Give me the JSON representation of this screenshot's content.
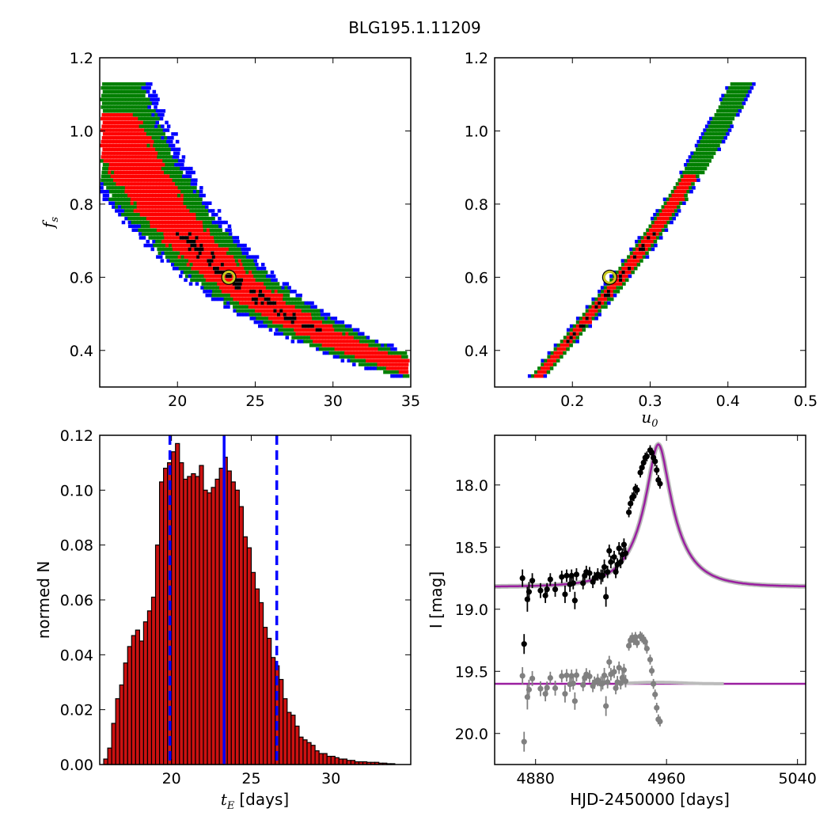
{
  "title": "BLG195.1.11209",
  "colors": {
    "sigma1": "#ff0000",
    "sigma2": "#008000",
    "sigma3": "#0000ff",
    "best": "#000000",
    "marker_ring": "#c8c820",
    "hist_fill": "#cc1111",
    "hist_line": "#0000ff",
    "model": "#9a1fa0",
    "data_points": "#000000",
    "residuals": "#808080"
  },
  "chart_data": [
    {
      "type": "heatmap",
      "name": "tE-fs",
      "xlabel": "",
      "ylabel_symbol": "f",
      "ylabel_sub": "s",
      "xlim": [
        15,
        35
      ],
      "ylim": [
        0.3,
        1.2
      ],
      "xticks": [
        "20",
        "25",
        "30",
        "35"
      ],
      "yticks": [
        "0.4",
        "0.6",
        "0.8",
        "1.0",
        "1.2"
      ],
      "best_fit": {
        "x": 23.3,
        "y": 0.6
      }
    },
    {
      "type": "heatmap",
      "name": "u0-fs",
      "xlabel_symbol": "u",
      "xlabel_sub": "0",
      "xlim": [
        0.1,
        0.5
      ],
      "ylim": [
        0.3,
        1.2
      ],
      "xticks": [
        "0.2",
        "0.3",
        "0.4",
        "0.5"
      ],
      "yticks": [
        "0.4",
        "0.6",
        "0.8",
        "1.0",
        "1.2"
      ],
      "best_fit": {
        "x": 0.248,
        "y": 0.6
      }
    },
    {
      "type": "bar",
      "name": "tE-histogram",
      "xlabel_symbol": "t",
      "xlabel_sub": "E",
      "xlabel_unit": "[days]",
      "ylabel": "normed N",
      "xlim": [
        15.5,
        35
      ],
      "ylim": [
        0,
        0.12
      ],
      "xticks": [
        "20",
        "25",
        "30"
      ],
      "yticks": [
        "0.00",
        "0.02",
        "0.04",
        "0.06",
        "0.08",
        "0.10",
        "0.12"
      ],
      "bin_start": 15.75,
      "bin_width": 0.25,
      "values": [
        0.002,
        0.006,
        0.015,
        0.024,
        0.029,
        0.037,
        0.043,
        0.047,
        0.049,
        0.045,
        0.052,
        0.056,
        0.061,
        0.08,
        0.103,
        0.108,
        0.11,
        0.114,
        0.117,
        0.11,
        0.104,
        0.105,
        0.106,
        0.105,
        0.109,
        0.1,
        0.099,
        0.101,
        0.104,
        0.108,
        0.112,
        0.107,
        0.103,
        0.1,
        0.094,
        0.083,
        0.079,
        0.07,
        0.064,
        0.059,
        0.05,
        0.046,
        0.039,
        0.036,
        0.031,
        0.024,
        0.019,
        0.018,
        0.014,
        0.01,
        0.009,
        0.008,
        0.007,
        0.005,
        0.004,
        0.004,
        0.003,
        0.003,
        0.0025,
        0.002,
        0.002,
        0.0015,
        0.0015,
        0.001,
        0.001,
        0.001,
        0.0008,
        0.0008,
        0.0008,
        0.0005,
        0.0005,
        0.0003,
        0.0003
      ],
      "median_line": 23.3,
      "interval_lines": [
        19.9,
        26.6
      ]
    },
    {
      "type": "scatter",
      "name": "light-curve",
      "xlabel": "HJD-2450000 [days]",
      "ylabel": "I [mag]",
      "xlim": [
        4855,
        5045
      ],
      "ylim": [
        20.25,
        17.6
      ],
      "xticks": [
        "4880",
        "4960",
        "5040"
      ],
      "yticks": [
        "18.0",
        "18.5",
        "19.0",
        "19.5",
        "20.0"
      ],
      "model": {
        "baseline": 18.82,
        "t0": 4955,
        "u0": 0.248,
        "tE": 23.3,
        "fs": 0.6
      },
      "residual_baseline": 19.6,
      "points": [
        [
          4872,
          18.75,
          0.07
        ],
        [
          4873,
          19.28,
          0.08
        ],
        [
          4875,
          18.92,
          0.1
        ],
        [
          4876,
          18.86,
          0.08
        ],
        [
          4878,
          18.77,
          0.06
        ],
        [
          4883,
          18.85,
          0.06
        ],
        [
          4886,
          18.89,
          0.06
        ],
        [
          4887,
          18.84,
          0.05
        ],
        [
          4889,
          18.76,
          0.05
        ],
        [
          4892,
          18.84,
          0.06
        ],
        [
          4896,
          18.74,
          0.05
        ],
        [
          4898,
          18.88,
          0.07
        ],
        [
          4899,
          18.73,
          0.05
        ],
        [
          4901,
          18.8,
          0.06
        ],
        [
          4902,
          18.73,
          0.05
        ],
        [
          4903,
          18.79,
          0.05
        ],
        [
          4904,
          18.93,
          0.07
        ],
        [
          4905,
          18.72,
          0.05
        ],
        [
          4909,
          18.79,
          0.05
        ],
        [
          4910,
          18.73,
          0.04
        ],
        [
          4911,
          18.7,
          0.05
        ],
        [
          4913,
          18.71,
          0.05
        ],
        [
          4915,
          18.78,
          0.05
        ],
        [
          4916,
          18.75,
          0.05
        ],
        [
          4918,
          18.72,
          0.05
        ],
        [
          4920,
          18.74,
          0.06
        ],
        [
          4921,
          18.73,
          0.05
        ],
        [
          4922,
          18.66,
          0.06
        ],
        [
          4923,
          18.9,
          0.08
        ],
        [
          4924,
          18.7,
          0.05
        ],
        [
          4925,
          18.53,
          0.05
        ],
        [
          4926,
          18.62,
          0.05
        ],
        [
          4928,
          18.58,
          0.05
        ],
        [
          4929,
          18.7,
          0.05
        ],
        [
          4930,
          18.64,
          0.05
        ],
        [
          4931,
          18.51,
          0.05
        ],
        [
          4932,
          18.62,
          0.05
        ],
        [
          4933,
          18.56,
          0.05
        ],
        [
          4934,
          18.48,
          0.05
        ],
        [
          4935,
          18.55,
          0.05
        ],
        [
          4937,
          18.22,
          0.04
        ],
        [
          4938,
          18.15,
          0.04
        ],
        [
          4939,
          18.1,
          0.04
        ],
        [
          4940,
          18.09,
          0.04
        ],
        [
          4941,
          18.03,
          0.04
        ],
        [
          4942,
          18.04,
          0.04
        ],
        [
          4944,
          17.9,
          0.04
        ],
        [
          4945,
          17.86,
          0.04
        ],
        [
          4946,
          17.82,
          0.04
        ],
        [
          4947,
          17.78,
          0.04
        ],
        [
          4948,
          17.77,
          0.04
        ],
        [
          4950,
          17.72,
          0.04
        ],
        [
          4951,
          17.74,
          0.04
        ],
        [
          4952,
          17.78,
          0.04
        ],
        [
          4953,
          17.81,
          0.04
        ],
        [
          4954,
          17.88,
          0.04
        ],
        [
          4955,
          17.96,
          0.04
        ],
        [
          4956,
          17.99,
          0.04
        ]
      ]
    }
  ]
}
